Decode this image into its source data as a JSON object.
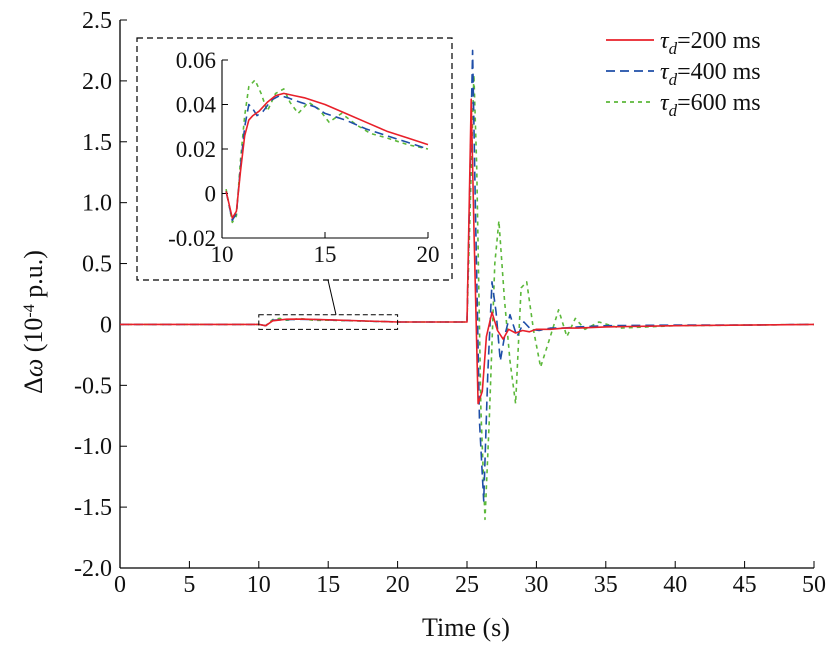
{
  "chart_data": {
    "type": "line",
    "xlabel": "Time (s)",
    "ylabel": {
      "prefix": "Δ",
      "symbol": "ω",
      "open": " (10",
      "exponent": "-4",
      "rest": " p.u.)"
    },
    "xlim": [
      0,
      50
    ],
    "ylim": [
      -2.0,
      2.5
    ],
    "xticks": [
      "0",
      "5",
      "10",
      "15",
      "20",
      "25",
      "30",
      "35",
      "40",
      "45",
      "50"
    ],
    "yticks": [
      "2.5",
      "2.0",
      "1.5",
      "1.0",
      "0.5",
      "0",
      "-0.5",
      "-1.0",
      "-1.5",
      "-2.0"
    ],
    "grid": false,
    "legend_position": "top-right",
    "series": [
      {
        "name": "τd=200 ms",
        "legend": {
          "tau": "τ",
          "sub": "d",
          "value": "=200 ms"
        },
        "color": "#e8202a",
        "dash": "solid",
        "x": [
          0,
          10,
          10.5,
          11,
          12,
          13,
          15,
          20,
          25,
          25.3,
          25.5,
          25.8,
          26.1,
          26.4,
          26.8,
          27.2,
          27.6,
          28.0,
          28.5,
          29.0,
          29.5,
          30,
          31,
          32,
          33,
          35,
          40,
          45,
          50
        ],
        "y": [
          0,
          0,
          -0.01,
          0.03,
          0.043,
          0.044,
          0.038,
          0.02,
          0.02,
          1.85,
          0.8,
          -0.65,
          -0.55,
          -0.1,
          0.1,
          -0.05,
          -0.12,
          -0.04,
          -0.07,
          -0.05,
          -0.06,
          -0.04,
          -0.04,
          -0.03,
          -0.03,
          -0.02,
          -0.01,
          -0.005,
          0
        ]
      },
      {
        "name": "τd=400 ms",
        "legend": {
          "tau": "τ",
          "sub": "d",
          "value": "=400 ms"
        },
        "color": "#1f4ea8",
        "dash": "dashed",
        "x": [
          0,
          10,
          10.5,
          11,
          12,
          13,
          15,
          20,
          25,
          25.4,
          25.6,
          25.9,
          26.2,
          26.5,
          26.8,
          27.1,
          27.4,
          27.7,
          28.1,
          28.6,
          29.1,
          29.6,
          30.2,
          31,
          32,
          33,
          35,
          40,
          45,
          50
        ],
        "y": [
          0,
          0,
          -0.01,
          0.035,
          0.04,
          0.042,
          0.037,
          0.02,
          0.02,
          2.25,
          1.0,
          -0.8,
          -1.45,
          -0.4,
          0.35,
          0.1,
          -0.3,
          -0.1,
          0.08,
          -0.1,
          0.02,
          -0.04,
          -0.05,
          -0.03,
          -0.03,
          -0.02,
          -0.01,
          -0.005,
          -0.005,
          0
        ]
      },
      {
        "name": "τd=600 ms",
        "legend": {
          "tau": "τ",
          "sub": "d",
          "value": "=600 ms"
        },
        "color": "#5cb83a",
        "dash": "dotted",
        "x": [
          0,
          10,
          10.5,
          11,
          11.5,
          12,
          13,
          14,
          15,
          20,
          25,
          25.5,
          25.7,
          26.0,
          26.3,
          26.6,
          27.0,
          27.3,
          27.7,
          28.1,
          28.5,
          28.9,
          29.3,
          29.8,
          30.3,
          31.0,
          31.6,
          32.2,
          32.8,
          33.5,
          34.5,
          36,
          40,
          45,
          50
        ],
        "y": [
          0,
          0,
          -0.01,
          0.04,
          0.05,
          0.035,
          0.048,
          0.033,
          0.035,
          0.02,
          0.02,
          2.05,
          1.3,
          -0.7,
          -1.6,
          -0.8,
          0.5,
          0.85,
          0.2,
          -0.3,
          -0.65,
          0.3,
          0.35,
          -0.05,
          -0.35,
          -0.1,
          0.12,
          -0.1,
          0.05,
          -0.04,
          0.02,
          -0.03,
          -0.01,
          -0.005,
          0
        ]
      }
    ],
    "inset": {
      "xlim": [
        10,
        20
      ],
      "ylim": [
        -0.02,
        0.06
      ],
      "xticks": [
        "10",
        "15",
        "20"
      ],
      "yticks": [
        "0.06",
        "0.04",
        "0.02",
        "0",
        "-0.02"
      ],
      "source_box": {
        "x": [
          10,
          20
        ],
        "y": [
          -0.04,
          0.08
        ]
      },
      "series": [
        {
          "x": [
            10.2,
            10.5,
            10.7,
            10.9,
            11.1,
            11.3,
            11.5,
            11.8,
            12.2,
            12.6,
            13.0,
            13.5,
            14,
            15,
            16,
            17,
            18,
            19,
            20
          ],
          "y": [
            0.001,
            -0.011,
            -0.008,
            0.01,
            0.026,
            0.033,
            0.035,
            0.037,
            0.041,
            0.044,
            0.045,
            0.044,
            0.043,
            0.04,
            0.036,
            0.032,
            0.028,
            0.025,
            0.022
          ]
        },
        {
          "x": [
            10.2,
            10.5,
            10.7,
            10.9,
            11.1,
            11.3,
            11.5,
            11.7,
            12.0,
            12.4,
            12.8,
            13.2,
            13.8,
            14.5,
            15,
            16,
            17,
            18,
            19,
            20
          ],
          "y": [
            0.001,
            -0.012,
            -0.009,
            0.012,
            0.03,
            0.04,
            0.038,
            0.035,
            0.037,
            0.042,
            0.044,
            0.043,
            0.041,
            0.039,
            0.036,
            0.033,
            0.029,
            0.026,
            0.023,
            0.02
          ]
        },
        {
          "x": [
            10.2,
            10.5,
            10.7,
            10.9,
            11.1,
            11.3,
            11.6,
            11.9,
            12.2,
            12.6,
            13.0,
            13.3,
            13.7,
            14.2,
            14.7,
            15.2,
            15.8,
            16.5,
            17.2,
            18,
            19,
            20
          ],
          "y": [
            0.002,
            -0.013,
            -0.01,
            0.015,
            0.035,
            0.048,
            0.051,
            0.045,
            0.037,
            0.045,
            0.047,
            0.041,
            0.036,
            0.041,
            0.038,
            0.032,
            0.036,
            0.031,
            0.027,
            0.025,
            0.022,
            0.02
          ]
        }
      ]
    }
  }
}
